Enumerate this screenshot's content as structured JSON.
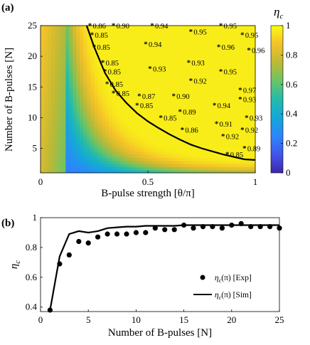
{
  "chart_data": [
    {
      "panel": "(a)",
      "type": "heatmap",
      "xlabel": "B-pulse strength [θ/π]",
      "ylabel": "Number of B-pulses [N]",
      "xlim": [
        0,
        1
      ],
      "ylim": [
        1,
        25
      ],
      "xticks": [
        "0",
        "0.5",
        "1"
      ],
      "yticks": [
        "5",
        "10",
        "15",
        "20",
        "25"
      ],
      "colorbar": {
        "label": "η",
        "label_sub": "c",
        "range": [
          0,
          1
        ],
        "ticks": [
          "0",
          "0.2",
          "0.4",
          "0.6",
          "0.8",
          "1"
        ]
      },
      "boundary_curve": {
        "x": [
          0.215,
          0.25,
          0.3,
          0.35,
          0.4,
          0.45,
          0.5,
          0.55,
          0.6,
          0.65,
          0.7,
          0.75,
          0.8,
          0.85,
          0.9,
          0.95,
          1.0
        ],
        "y": [
          25,
          21.5,
          17.3,
          14.4,
          12.4,
          10.7,
          9.4,
          8.3,
          7.3,
          6.4,
          5.6,
          5.0,
          4.5,
          4.0,
          3.6,
          3.2,
          3.1
        ]
      },
      "points": [
        {
          "x": 0.23,
          "y": 25,
          "label": "0.86",
          "color": "blue"
        },
        {
          "x": 0.34,
          "y": 25,
          "label": "0.90",
          "color": "blue"
        },
        {
          "x": 0.52,
          "y": 25,
          "label": "0.94",
          "color": "red"
        },
        {
          "x": 0.84,
          "y": 25,
          "label": "0.95",
          "color": "red"
        },
        {
          "x": 0.24,
          "y": 23.5,
          "label": "0.85",
          "color": "blue"
        },
        {
          "x": 0.7,
          "y": 24,
          "label": "0.95",
          "color": "red"
        },
        {
          "x": 0.94,
          "y": 23.5,
          "label": "0.95",
          "color": "red"
        },
        {
          "x": 0.25,
          "y": 21.5,
          "label": "0.85",
          "color": "blue"
        },
        {
          "x": 0.49,
          "y": 22,
          "label": "0.94",
          "color": "red"
        },
        {
          "x": 0.83,
          "y": 21.5,
          "label": "0.96",
          "color": "red"
        },
        {
          "x": 0.97,
          "y": 21,
          "label": "0.96",
          "color": "red"
        },
        {
          "x": 0.29,
          "y": 19,
          "label": "0.85",
          "color": "blue"
        },
        {
          "x": 0.69,
          "y": 19,
          "label": "0.93",
          "color": "red"
        },
        {
          "x": 0.3,
          "y": 17.5,
          "label": "0.85",
          "color": "blue"
        },
        {
          "x": 0.51,
          "y": 18,
          "label": "0.93",
          "color": "red"
        },
        {
          "x": 0.84,
          "y": 17.5,
          "label": "0.95",
          "color": "red"
        },
        {
          "x": 0.31,
          "y": 15.5,
          "label": "0.85",
          "color": "blue"
        },
        {
          "x": 0.7,
          "y": 16,
          "label": "0.92",
          "color": "red"
        },
        {
          "x": 0.34,
          "y": 14,
          "label": "0.85",
          "color": "blue"
        },
        {
          "x": 0.93,
          "y": 14.5,
          "label": "0.97",
          "color": "red"
        },
        {
          "x": 0.46,
          "y": 13.5,
          "label": "0.87",
          "color": "blue"
        },
        {
          "x": 0.62,
          "y": 13.5,
          "label": "0.90",
          "color": "red"
        },
        {
          "x": 0.93,
          "y": 13,
          "label": "0.93",
          "color": "red"
        },
        {
          "x": 0.45,
          "y": 12,
          "label": "0.85",
          "color": "blue"
        },
        {
          "x": 0.81,
          "y": 12,
          "label": "0.94",
          "color": "red"
        },
        {
          "x": 0.65,
          "y": 11,
          "label": "0.89",
          "color": "blue"
        },
        {
          "x": 0.56,
          "y": 10,
          "label": "0.85",
          "color": "blue"
        },
        {
          "x": 0.96,
          "y": 10,
          "label": "0.93",
          "color": "red"
        },
        {
          "x": 0.82,
          "y": 9,
          "label": "0.91",
          "color": "red"
        },
        {
          "x": 0.66,
          "y": 8,
          "label": "0.86",
          "color": "blue"
        },
        {
          "x": 0.94,
          "y": 8,
          "label": "0.92",
          "color": "red"
        },
        {
          "x": 0.85,
          "y": 7,
          "label": "0.92",
          "color": "red"
        },
        {
          "x": 0.95,
          "y": 5,
          "label": "0.89",
          "color": "blue"
        },
        {
          "x": 0.87,
          "y": 4,
          "label": "0.85",
          "color": "blue"
        }
      ]
    },
    {
      "panel": "(b)",
      "type": "line",
      "xlabel": "Number of B-pulses [N]",
      "ylabel": "η",
      "ylabel_sub": "c",
      "xlim": [
        0,
        25
      ],
      "ylim": [
        0.37,
        1.0
      ],
      "xticks": [
        "0",
        "5",
        "10",
        "15",
        "20",
        "25"
      ],
      "yticks": [
        "0.4",
        "0.6",
        "0.8",
        "1"
      ],
      "legend_position": "bottom-right",
      "series": [
        {
          "legend_main": "η",
          "legend_sub": "c",
          "legend_rest": "(π) [Exp]",
          "marker": "circle",
          "x": [
            1,
            2,
            3,
            4,
            5,
            6,
            7,
            8,
            9,
            10,
            11,
            12,
            13,
            14,
            15,
            16,
            17,
            18,
            19,
            20,
            21,
            22,
            23,
            24,
            25
          ],
          "y": [
            0.38,
            0.69,
            0.75,
            0.84,
            0.83,
            0.87,
            0.89,
            0.89,
            0.89,
            0.9,
            0.9,
            0.93,
            0.92,
            0.92,
            0.95,
            0.93,
            0.94,
            0.94,
            0.93,
            0.95,
            0.96,
            0.94,
            0.94,
            0.94,
            0.93
          ]
        },
        {
          "legend_main": "η",
          "legend_sub": "c",
          "legend_rest": "(π) [Sim]",
          "marker": "line",
          "x": [
            1,
            2,
            3,
            4,
            5,
            6,
            7,
            8,
            9,
            10,
            11,
            12,
            13,
            14,
            15,
            16,
            17,
            18,
            19,
            20,
            21,
            22,
            23,
            24,
            25
          ],
          "y": [
            0.38,
            0.74,
            0.89,
            0.91,
            0.9,
            0.91,
            0.93,
            0.935,
            0.94,
            0.94,
            0.945,
            0.945,
            0.945,
            0.945,
            0.95,
            0.95,
            0.95,
            0.95,
            0.95,
            0.95,
            0.95,
            0.95,
            0.95,
            0.95,
            0.95
          ]
        }
      ]
    }
  ]
}
